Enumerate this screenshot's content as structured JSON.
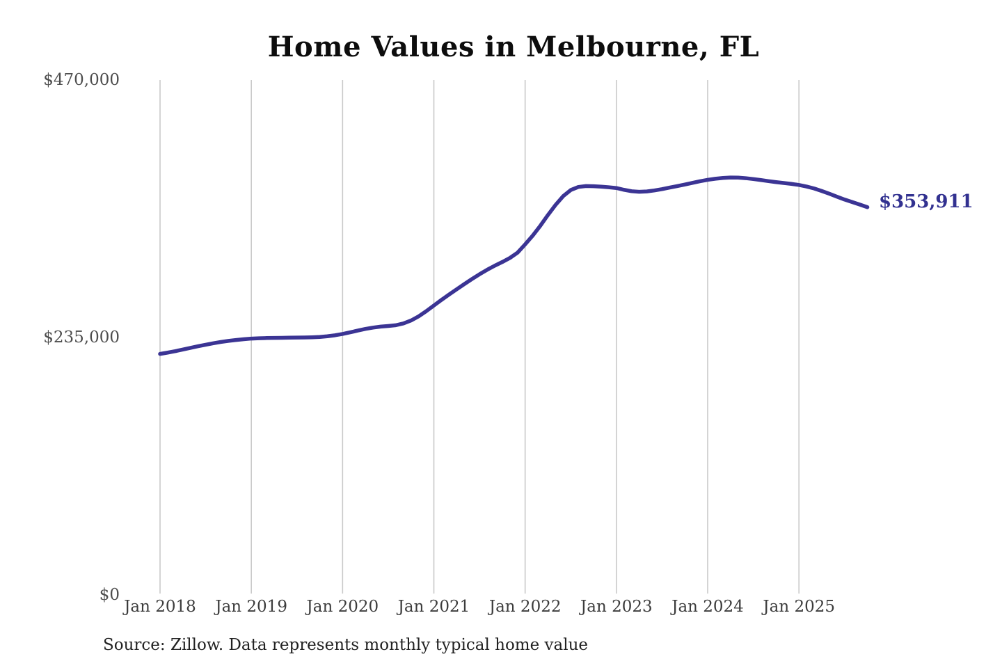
{
  "chart_data": {
    "type": "line",
    "title": "Home Values in Melbourne, FL",
    "source": "Source: Zillow. Data represents monthly typical home value",
    "end_label": "$353,911",
    "latest_value": 353911,
    "xlabel": "",
    "ylabel": "",
    "ylim": [
      0,
      470000
    ],
    "y_tick_values": [
      470000,
      235000,
      0
    ],
    "y_ticks": [
      "$470,000",
      "$235,000",
      "$0"
    ],
    "x_ticks": [
      "Jan 2018",
      "Jan 2019",
      "Jan 2020",
      "Jan 2021",
      "Jan 2022",
      "Jan 2023",
      "Jan 2024",
      "Jan 2025"
    ],
    "grid": "vertical-only",
    "legend": "none",
    "line_color": "#3b3494",
    "end_label_color": "#323190",
    "series": [
      {
        "name": "Monthly typical home value",
        "unit": "USD",
        "x_start": "Jan 2018",
        "x_interval": "monthly",
        "values": [
          220000,
          221200,
          222500,
          224000,
          225500,
          227000,
          228400,
          229700,
          230900,
          231900,
          232700,
          233400,
          234000,
          234300,
          234500,
          234600,
          234700,
          234800,
          234900,
          235000,
          235200,
          235500,
          236100,
          237000,
          238200,
          239700,
          241300,
          242800,
          244000,
          244900,
          245500,
          246200,
          247800,
          250500,
          254300,
          259000,
          264200,
          269300,
          274200,
          279000,
          283700,
          288300,
          292700,
          296800,
          300500,
          303900,
          307600,
          312400,
          320000,
          328000,
          337000,
          346800,
          356000,
          364000,
          369600,
          372400,
          373200,
          373100,
          372700,
          372100,
          371400,
          369800,
          368500,
          368000,
          368300,
          369200,
          370400,
          371800,
          373200,
          374600,
          376100,
          377600,
          378900,
          379900,
          380600,
          381000,
          380900,
          380400,
          379600,
          378700,
          377700,
          376800,
          376000,
          375200,
          374200,
          372800,
          371000,
          368700,
          366200,
          363500,
          360900,
          358600,
          356300,
          353911
        ]
      }
    ]
  }
}
